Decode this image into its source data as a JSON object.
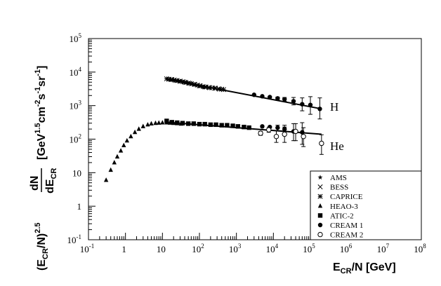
{
  "chart_data": {
    "type": "scatter",
    "xscale": "log",
    "yscale": "log",
    "xlim": [
      0.1,
      100000000
    ],
    "ylim": [
      0.1,
      100000
    ],
    "xticklabels": [
      {
        "base": "10",
        "exp": "-1",
        "value": 0.1
      },
      {
        "base": "1",
        "exp": "",
        "value": 1
      },
      {
        "base": "10",
        "exp": "",
        "value": 10
      },
      {
        "base": "10",
        "exp": "2",
        "value": 100
      },
      {
        "base": "10",
        "exp": "3",
        "value": 1000
      },
      {
        "base": "10",
        "exp": "4",
        "value": 10000
      },
      {
        "base": "10",
        "exp": "5",
        "value": 100000
      },
      {
        "base": "10",
        "exp": "6",
        "value": 1000000
      },
      {
        "base": "10",
        "exp": "7",
        "value": 10000000
      },
      {
        "base": "10",
        "exp": "8",
        "value": 100000000
      }
    ],
    "yticklabels": [
      {
        "base": "10",
        "exp": "-1",
        "value": 0.1
      },
      {
        "base": "1",
        "exp": "",
        "value": 1
      },
      {
        "base": "10",
        "exp": "",
        "value": 10
      },
      {
        "base": "10",
        "exp": "2",
        "value": 100
      },
      {
        "base": "10",
        "exp": "3",
        "value": 1000
      },
      {
        "base": "10",
        "exp": "4",
        "value": 10000
      },
      {
        "base": "10",
        "exp": "5",
        "value": 100000
      }
    ],
    "xlabel": "E_CR/N [GeV]",
    "ylabel": "(E_CR/N)^2.5 dN/dE_CR [GeV^1.5 cm^-2 s^-1 sr^-1]",
    "annotations": [
      "H",
      "He"
    ],
    "legend": {
      "position": "bottom-right",
      "entries": [
        {
          "marker": "star",
          "label": "AMS"
        },
        {
          "marker": "cross",
          "label": "BESS"
        },
        {
          "marker": "asterisk",
          "label": "CAPRICE"
        },
        {
          "marker": "triangle",
          "label": "HEAO-3"
        },
        {
          "marker": "square",
          "label": "ATIC-2"
        },
        {
          "marker": "circle",
          "label": "CREAM 1"
        },
        {
          "marker": "open-circle",
          "label": "CREAM 2"
        }
      ]
    },
    "series": [
      {
        "name": "AMS",
        "marker": "star",
        "points": [
          [
            14,
            6200
          ],
          [
            16,
            6100
          ],
          [
            19,
            5900
          ],
          [
            22,
            5700
          ],
          [
            26,
            5500
          ],
          [
            31,
            5300
          ],
          [
            37,
            5000
          ],
          [
            44,
            4800
          ],
          [
            52,
            4600
          ],
          [
            62,
            4400
          ],
          [
            75,
            4200
          ],
          [
            90,
            4000
          ],
          [
            110,
            3800
          ],
          [
            130,
            3600
          ]
        ]
      },
      {
        "name": "BESS",
        "marker": "cross",
        "points": [
          [
            15,
            6100
          ],
          [
            18,
            6000
          ],
          [
            21,
            5800
          ],
          [
            25,
            5600
          ],
          [
            30,
            5400
          ],
          [
            36,
            5200
          ],
          [
            43,
            4900
          ],
          [
            51,
            4700
          ],
          [
            61,
            4500
          ],
          [
            73,
            4300
          ],
          [
            88,
            4100
          ],
          [
            105,
            3900
          ],
          [
            126,
            3700
          ],
          [
            150,
            3600
          ],
          [
            180,
            3500
          ],
          [
            220,
            3400
          ],
          [
            270,
            3300
          ],
          [
            330,
            3200
          ],
          [
            400,
            3100
          ]
        ]
      },
      {
        "name": "CAPRICE",
        "marker": "asterisk",
        "points": [
          [
            13,
            6300
          ],
          [
            17,
            6000
          ],
          [
            23,
            5600
          ],
          [
            30,
            5300
          ],
          [
            40,
            5000
          ],
          [
            55,
            4600
          ],
          [
            75,
            4300
          ],
          [
            100,
            3900
          ],
          [
            140,
            3600
          ],
          [
            190,
            3400
          ],
          [
            260,
            3300
          ],
          [
            350,
            3100
          ],
          [
            450,
            3000
          ]
        ]
      },
      {
        "name": "HEAO-3",
        "marker": "triangle",
        "points": [
          [
            0.3,
            6
          ],
          [
            0.4,
            12
          ],
          [
            0.5,
            20
          ],
          [
            0.6,
            30
          ],
          [
            0.75,
            45
          ],
          [
            0.9,
            65
          ],
          [
            1.1,
            90
          ],
          [
            1.4,
            120
          ],
          [
            1.8,
            160
          ],
          [
            2.3,
            200
          ],
          [
            3,
            240
          ],
          [
            4,
            270
          ],
          [
            5,
            290
          ],
          [
            6.5,
            300
          ],
          [
            8,
            305
          ],
          [
            10,
            310
          ],
          [
            13,
            310
          ],
          [
            16,
            305
          ],
          [
            20,
            300
          ],
          [
            25,
            295
          ],
          [
            32,
            285
          ]
        ]
      },
      {
        "name": "ATIC-2",
        "marker": "square",
        "points": [
          [
            13,
            350
          ],
          [
            18,
            320
          ],
          [
            25,
            310
          ],
          [
            35,
            300
          ],
          [
            50,
            290
          ],
          [
            70,
            290
          ],
          [
            100,
            280
          ],
          [
            140,
            280
          ],
          [
            200,
            270
          ],
          [
            280,
            270
          ],
          [
            400,
            260
          ],
          [
            560,
            260
          ],
          [
            800,
            250
          ],
          [
            1100,
            240
          ],
          [
            1600,
            230
          ],
          [
            2200,
            220
          ]
        ]
      },
      {
        "name": "CREAM 1 H",
        "marker": "circle",
        "points": [
          [
            3000,
            2100
          ],
          [
            5000,
            1900
          ],
          [
            8000,
            1800
          ],
          [
            13000,
            1650
          ],
          [
            20000,
            1550
          ],
          [
            35000,
            1350
          ],
          [
            60000,
            1100
          ],
          [
            100000,
            1050
          ],
          [
            180000,
            800
          ]
        ],
        "errors": [
          [
            0,
            0
          ],
          [
            0,
            0
          ],
          [
            0,
            0
          ],
          [
            150,
            150
          ],
          [
            200,
            200
          ],
          [
            300,
            400
          ],
          [
            400,
            600
          ],
          [
            500,
            800
          ],
          [
            400,
            900
          ]
        ]
      },
      {
        "name": "CREAM 1 He",
        "marker": "circle",
        "points": [
          [
            5000,
            240
          ],
          [
            8000,
            230
          ],
          [
            13000,
            220
          ],
          [
            20000,
            200
          ],
          [
            35000,
            170
          ],
          [
            60000,
            160
          ]
        ],
        "errors": [
          [
            0,
            0
          ],
          [
            0,
            0
          ],
          [
            40,
            40
          ],
          [
            60,
            60
          ],
          [
            80,
            120
          ],
          [
            90,
            150
          ]
        ]
      },
      {
        "name": "CREAM 2 He",
        "marker": "open-circle",
        "points": [
          [
            4500,
            150
          ],
          [
            7500,
            190
          ],
          [
            12000,
            120
          ],
          [
            20000,
            140
          ],
          [
            40000,
            170
          ],
          [
            65000,
            120
          ],
          [
            200000,
            75
          ]
        ],
        "errors": [
          [
            20,
            20
          ],
          [
            30,
            30
          ],
          [
            40,
            60
          ],
          [
            60,
            90
          ],
          [
            80,
            120
          ],
          [
            60,
            100
          ],
          [
            40,
            60
          ]
        ]
      }
    ],
    "fit_lines": [
      {
        "label": "H",
        "points": [
          [
            14,
            6000
          ],
          [
            200000,
            800
          ]
        ]
      },
      {
        "label": "He",
        "points": [
          [
            13,
            320
          ],
          [
            200000,
            140
          ]
        ]
      }
    ]
  }
}
